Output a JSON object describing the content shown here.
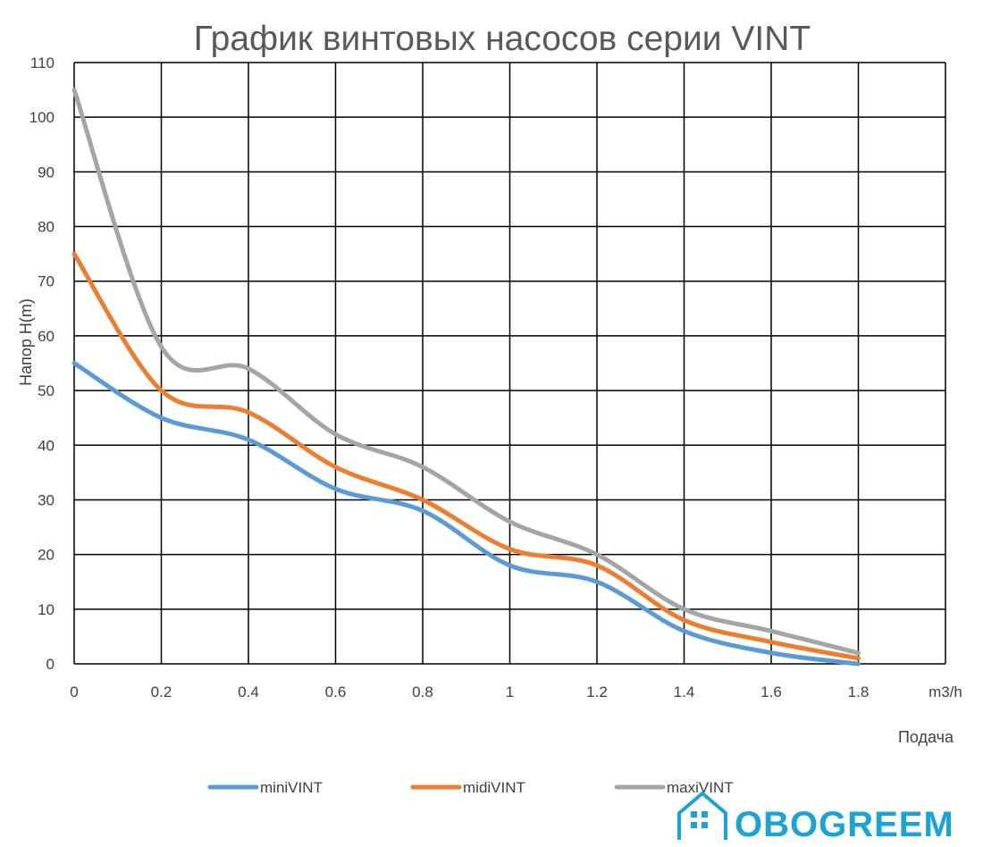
{
  "chart_data": {
    "type": "line",
    "title": "График винтовых насосов серии VINT",
    "xlabel": "Подача",
    "x_unit": "m3/h",
    "ylabel": "Напор  H(m)",
    "x": [
      0,
      0.2,
      0.4,
      0.6,
      0.8,
      1,
      1.2,
      1.4,
      1.6,
      1.8
    ],
    "x_tick_labels": [
      "0",
      "0.2",
      "0.4",
      "0.6",
      "0.8",
      "1",
      "1.2",
      "1.4",
      "1.6",
      "1.8"
    ],
    "xlim": [
      0,
      2.0
    ],
    "y_ticks": [
      0,
      10,
      20,
      30,
      40,
      50,
      60,
      70,
      80,
      90,
      100,
      110
    ],
    "ylim": [
      0,
      110
    ],
    "grid": true,
    "legend_position": "bottom",
    "series": [
      {
        "name": "miniVINT",
        "color": "#5b9bd5",
        "values": [
          55,
          45,
          41,
          32,
          28,
          18,
          15,
          6,
          2,
          0
        ]
      },
      {
        "name": "midiVINT",
        "color": "#ed7d31",
        "values": [
          75,
          50,
          46,
          36,
          30,
          21,
          18,
          8,
          4,
          1
        ]
      },
      {
        "name": "maxiVINT",
        "color": "#a5a5a5",
        "values": [
          105,
          58,
          54,
          42,
          36,
          26,
          20,
          10,
          6,
          2
        ]
      }
    ]
  },
  "logo": {
    "text": "OBOGREEM",
    "color": "#1aa3d6",
    "icon": "house-icon"
  }
}
